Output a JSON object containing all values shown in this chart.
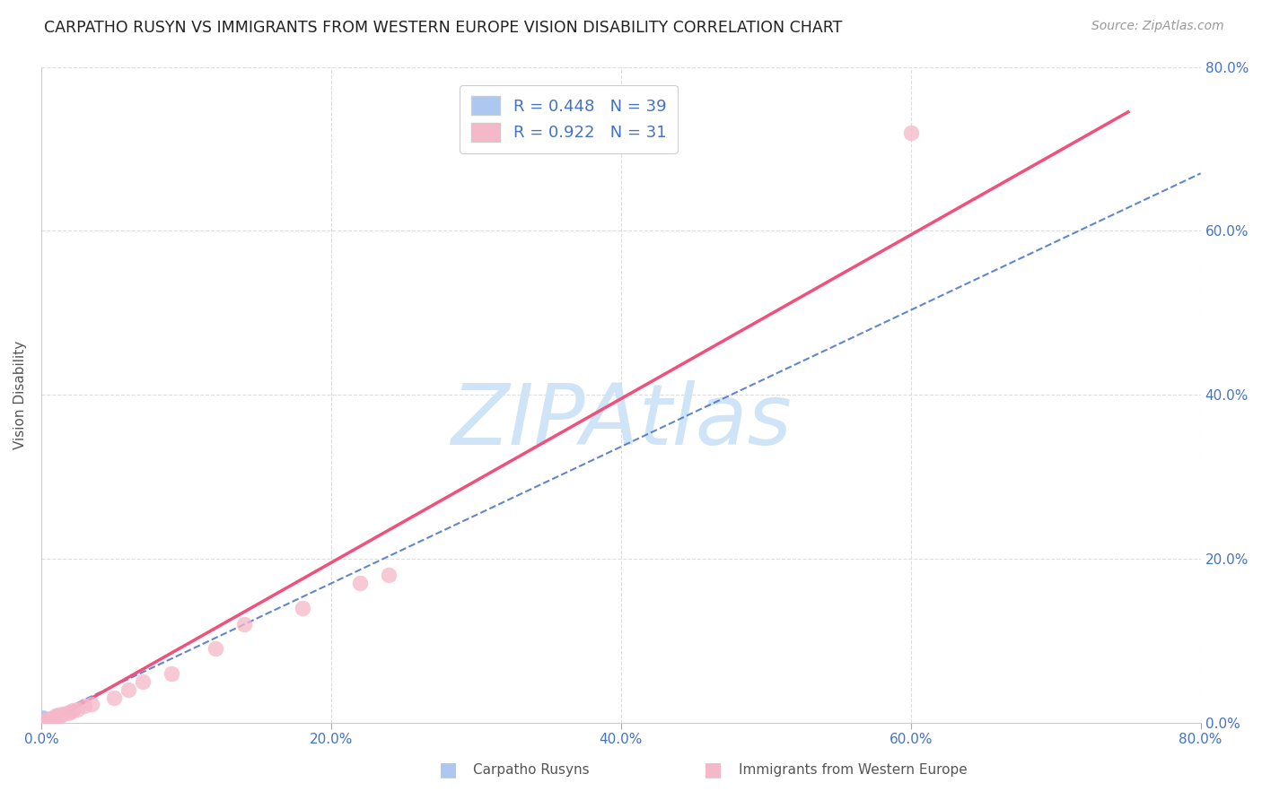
{
  "title": "CARPATHO RUSYN VS IMMIGRANTS FROM WESTERN EUROPE VISION DISABILITY CORRELATION CHART",
  "source": "Source: ZipAtlas.com",
  "ylabel": "Vision Disability",
  "xlim": [
    0,
    0.8
  ],
  "ylim": [
    0,
    0.8
  ],
  "xticks": [
    0.0,
    0.2,
    0.4,
    0.6,
    0.8
  ],
  "yticks": [
    0.0,
    0.2,
    0.4,
    0.6,
    0.8
  ],
  "xtick_labels": [
    "0.0%",
    "20.0%",
    "40.0%",
    "60.0%",
    "80.0%"
  ],
  "ytick_labels": [
    "0.0%",
    "20.0%",
    "40.0%",
    "60.0%",
    "80.0%"
  ],
  "grid_color": "#dddddd",
  "background_color": "#ffffff",
  "watermark_text": "ZIPAtlas",
  "watermark_color": "#d0e4f7",
  "legend1_label": "Carpatho Rusyns",
  "legend2_label": "Immigrants from Western Europe",
  "series1": {
    "R": 0.448,
    "N": 39,
    "color": "#adc8f0",
    "edge_color": "#adc8f0",
    "line_color": "#4472c4",
    "line_style": "--",
    "marker_size": 120,
    "x": [
      0.0,
      0.001,
      0.0015,
      0.001,
      0.002,
      0.0,
      0.003,
      0.002,
      0.001,
      0.0,
      0.004,
      0.002,
      0.0005,
      0.0,
      0.003,
      0.001,
      0.0015,
      0.0,
      0.005,
      0.002,
      0.001,
      0.003,
      0.0,
      0.002,
      0.0,
      0.001,
      0.004,
      0.002,
      0.003,
      0.001,
      0.006,
      0.0,
      0.002,
      0.001,
      0.003,
      0.0,
      0.0015,
      0.001,
      0.002
    ],
    "y": [
      0.0,
      0.002,
      0.001,
      0.003,
      0.002,
      0.001,
      0.003,
      0.001,
      0.002,
      0.002,
      0.003,
      0.002,
      0.001,
      0.003,
      0.002,
      0.004,
      0.002,
      0.001,
      0.003,
      0.003,
      0.005,
      0.004,
      0.002,
      0.001,
      0.003,
      0.006,
      0.004,
      0.003,
      0.005,
      0.003,
      0.004,
      0.004,
      0.002,
      0.007,
      0.005,
      0.005,
      0.003,
      0.002,
      0.002
    ],
    "trend_x": [
      0.0,
      0.8
    ],
    "trend_y": [
      0.003,
      0.67
    ]
  },
  "series2": {
    "R": 0.922,
    "N": 31,
    "color": "#f5b8c8",
    "edge_color": "#f5b8c8",
    "line_color": "#f0507a",
    "line_style": "-",
    "marker_size": 160,
    "x": [
      0.0,
      0.001,
      0.002,
      0.003,
      0.004,
      0.005,
      0.006,
      0.007,
      0.008,
      0.009,
      0.01,
      0.011,
      0.012,
      0.013,
      0.015,
      0.018,
      0.02,
      0.022,
      0.025,
      0.03,
      0.035,
      0.05,
      0.06,
      0.07,
      0.09,
      0.12,
      0.14,
      0.18,
      0.22,
      0.24,
      0.6
    ],
    "y": [
      0.0,
      0.001,
      0.002,
      0.003,
      0.002,
      0.004,
      0.004,
      0.005,
      0.005,
      0.006,
      0.008,
      0.007,
      0.009,
      0.008,
      0.01,
      0.012,
      0.013,
      0.015,
      0.016,
      0.02,
      0.022,
      0.03,
      0.04,
      0.05,
      0.06,
      0.09,
      0.12,
      0.14,
      0.17,
      0.18,
      0.72
    ],
    "trend_x": [
      0.0,
      0.75
    ],
    "trend_y": [
      -0.005,
      0.745
    ]
  }
}
